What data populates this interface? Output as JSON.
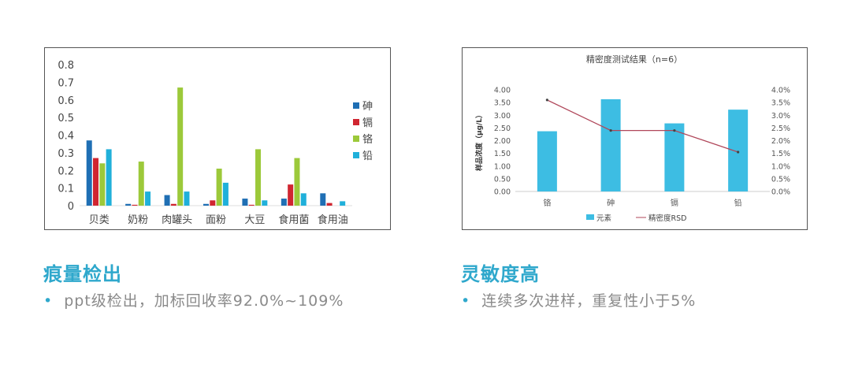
{
  "chart_data": [
    {
      "type": "bar",
      "categories": [
        "贝类",
        "奶粉",
        "肉罐头",
        "面粉",
        "大豆",
        "食用菌",
        "食用油"
      ],
      "series": [
        {
          "name": "砷",
          "color": "#1f6fb4",
          "values": [
            0.37,
            0.01,
            0.06,
            0.01,
            0.04,
            0.04,
            0.07
          ]
        },
        {
          "name": "镉",
          "color": "#d02631",
          "values": [
            0.27,
            0.005,
            0.01,
            0.03,
            0.005,
            0.12,
            0.015
          ]
        },
        {
          "name": "铬",
          "color": "#9cc93a",
          "values": [
            0.24,
            0.25,
            0.67,
            0.21,
            0.32,
            0.27,
            0
          ]
        },
        {
          "name": "铅",
          "color": "#20b0da",
          "values": [
            0.32,
            0.08,
            0.08,
            0.13,
            0.03,
            0.07,
            0.025
          ]
        }
      ],
      "ylim": [
        0,
        0.8
      ],
      "yticks": [
        "0",
        "0.1",
        "0.2",
        "0.3",
        "0.4",
        "0.5",
        "0.6",
        "0.7",
        "0.8"
      ],
      "legend": "right"
    },
    {
      "type": "bar+line",
      "title": "精密度测试结果（n=6）",
      "categories": [
        "铬",
        "砷",
        "镉",
        "铅"
      ],
      "ylabel": "样品浓度（μg/L）",
      "series": [
        {
          "name": "元素",
          "type": "bar",
          "color": "#3dbde3",
          "values": [
            2.37,
            3.63,
            2.68,
            3.22
          ]
        },
        {
          "name": "精密度RSD",
          "type": "line",
          "axis": "right",
          "color": "#b0475a",
          "values": [
            3.6,
            2.4,
            2.4,
            1.55
          ]
        }
      ],
      "ylim": [
        0,
        4
      ],
      "y2lim": [
        0,
        4
      ],
      "yticks": [
        "0.00",
        "0.50",
        "1.00",
        "1.50",
        "2.00",
        "2.50",
        "3.00",
        "3.50",
        "4.00"
      ],
      "y2ticks": [
        "0.0%",
        "0.5%",
        "1.0%",
        "1.5%",
        "2.0%",
        "2.5%",
        "3.0%",
        "3.5%",
        "4.0%"
      ],
      "legend": "bottom"
    }
  ],
  "left": {
    "heading": "痕量检出",
    "bullet": "ppt级检出，加标回收率92.0%~109%"
  },
  "right": {
    "heading": "灵敏度高",
    "bullet": "连续多次进样，重复性小于5%"
  }
}
